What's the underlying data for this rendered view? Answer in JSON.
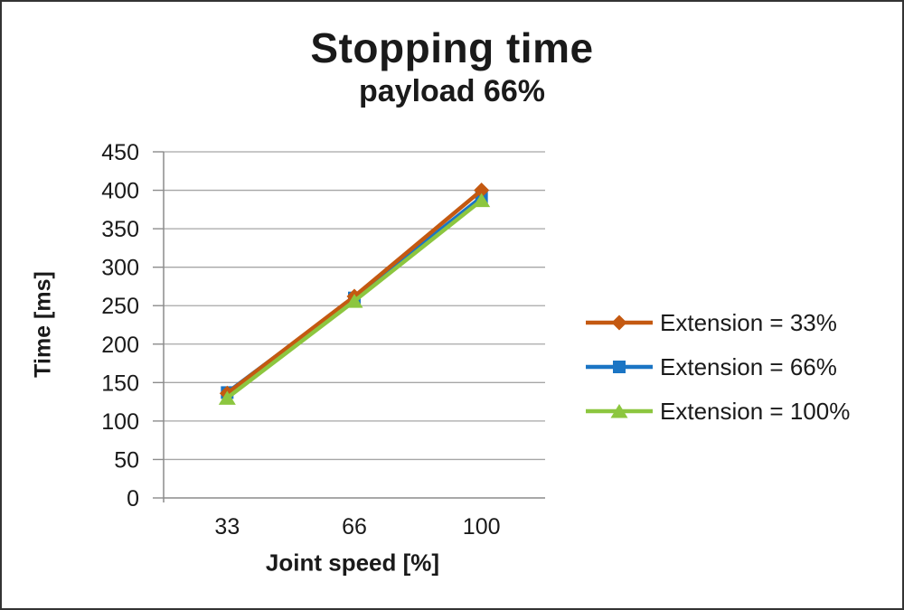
{
  "window": {
    "background": "#ffffff",
    "border_color": "#333333"
  },
  "chart_data": {
    "type": "line",
    "title": "Stopping time",
    "subtitle": "payload 66%",
    "xlabel": "Joint speed [%]",
    "ylabel": "Time [ms]",
    "categories": [
      "33",
      "66",
      "100"
    ],
    "ylim": [
      0,
      450
    ],
    "ytick_step": 50,
    "yticks": [
      450,
      400,
      350,
      300,
      250,
      200,
      150,
      100,
      50,
      0
    ],
    "grid": true,
    "legend_position": "right",
    "series": [
      {
        "name": "Extension = 33%",
        "color": "#C45911",
        "marker": "diamond",
        "values": [
          136,
          262,
          400
        ],
        "z": 2
      },
      {
        "name": "Extension = 66%",
        "color": "#1B75C4",
        "marker": "square",
        "values": [
          137,
          260,
          391
        ],
        "z": 1
      },
      {
        "name": "Extension = 100%",
        "color": "#8CC63F",
        "marker": "triangle",
        "values": [
          130,
          256,
          387
        ],
        "z": 3
      }
    ],
    "colors": {
      "gridline": "#A6A6A6",
      "axis": "#8C8C8C",
      "text": "#1A1A1A"
    }
  }
}
